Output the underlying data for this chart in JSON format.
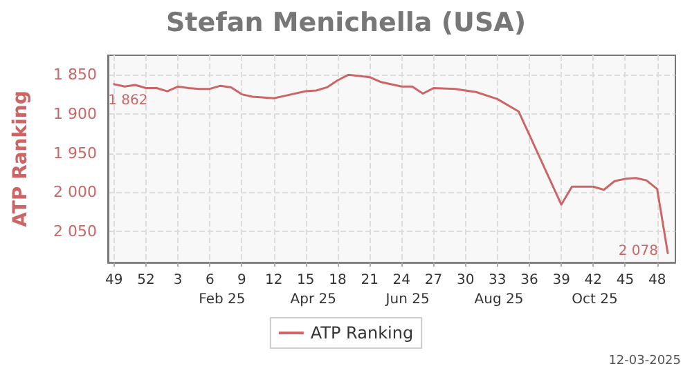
{
  "chart_data": {
    "type": "line",
    "title": "Stefan Menichella (USA)",
    "ylabel": "ATP Ranking",
    "x": [
      "2024-12-02",
      "2024-12-09",
      "2024-12-16",
      "2024-12-23",
      "2024-12-30",
      "2025-01-06",
      "2025-01-13",
      "2025-01-20",
      "2025-01-27",
      "2025-02-03",
      "2025-02-10",
      "2025-02-17",
      "2025-02-24",
      "2025-03-03",
      "2025-03-17",
      "2025-03-24",
      "2025-04-07",
      "2025-04-14",
      "2025-04-21",
      "2025-04-28",
      "2025-05-05",
      "2025-05-19",
      "2025-05-26",
      "2025-06-09",
      "2025-06-16",
      "2025-06-23",
      "2025-06-30",
      "2025-07-14",
      "2025-07-28",
      "2025-08-11",
      "2025-08-25",
      "2025-09-22",
      "2025-09-29",
      "2025-10-13",
      "2025-10-20",
      "2025-10-27",
      "2025-11-03",
      "2025-11-10",
      "2025-11-17",
      "2025-11-24",
      "2025-12-01"
    ],
    "series": [
      {
        "name": "ATP Ranking",
        "color": "#cc6666",
        "values": [
          1862,
          1865,
          1863,
          1867,
          1867,
          1871,
          1865,
          1867,
          1868,
          1868,
          1864,
          1866,
          1875,
          1878,
          1880,
          1877,
          1871,
          1870,
          1866,
          1857,
          1850,
          1853,
          1859,
          1865,
          1865,
          1874,
          1867,
          1868,
          1872,
          1881,
          1897,
          2016,
          1993,
          1993,
          1997,
          1986,
          1983,
          1982,
          1985,
          1996,
          2078
        ],
        "value_labels": [
          "1 862",
          null,
          null,
          null,
          null,
          null,
          null,
          null,
          null,
          null,
          null,
          null,
          null,
          null,
          null,
          null,
          null,
          null,
          null,
          null,
          null,
          null,
          null,
          null,
          null,
          null,
          null,
          null,
          null,
          null,
          null,
          null,
          null,
          null,
          null,
          null,
          null,
          null,
          null,
          null,
          "2 078"
        ]
      }
    ],
    "xlim": [
      "2024-11-28",
      "2025-12-06"
    ],
    "xticks": [
      {
        "value": "2024-12-02",
        "label": "49"
      },
      {
        "value": "2024-12-23",
        "label": "52"
      },
      {
        "value": "2025-01-13",
        "label": "3"
      },
      {
        "value": "2025-02-03",
        "label": "6"
      },
      {
        "value": "2025-02-24",
        "label": "9"
      },
      {
        "value": "2025-03-17",
        "label": "12"
      },
      {
        "value": "2025-04-07",
        "label": "15"
      },
      {
        "value": "2025-04-28",
        "label": "18"
      },
      {
        "value": "2025-05-19",
        "label": "21"
      },
      {
        "value": "2025-06-09",
        "label": "24"
      },
      {
        "value": "2025-06-30",
        "label": "27"
      },
      {
        "value": "2025-07-21",
        "label": "30"
      },
      {
        "value": "2025-08-11",
        "label": "33"
      },
      {
        "value": "2025-09-01",
        "label": "36"
      },
      {
        "value": "2025-09-22",
        "label": "39"
      },
      {
        "value": "2025-10-13",
        "label": "42"
      },
      {
        "value": "2025-11-03",
        "label": "45"
      },
      {
        "value": "2025-11-24",
        "label": "48"
      }
    ],
    "x2lim": [
      "2024-11-28",
      "2025-12-06"
    ],
    "x2ticks": [
      {
        "value": "2025-02-11",
        "label": "Feb 25"
      },
      {
        "value": "2025-04-12",
        "label": "Apr 25"
      },
      {
        "value": "2025-06-13",
        "label": "Jun 25"
      },
      {
        "value": "2025-08-12",
        "label": "Aug 25"
      },
      {
        "value": "2025-10-14",
        "label": "Oct 25"
      }
    ],
    "ylim": [
      2090,
      1825
    ],
    "yticks": [
      {
        "value": 1850,
        "label": "1 850"
      },
      {
        "value": 1900,
        "label": "1 900"
      },
      {
        "value": 1950,
        "label": "1 950"
      },
      {
        "value": 2000,
        "label": "2 000"
      },
      {
        "value": 2050,
        "label": "2 050"
      }
    ],
    "grid": true,
    "legend": "bottom",
    "marker": "none",
    "line_style": "solid",
    "annotations": [
      "12-03-2025"
    ]
  }
}
